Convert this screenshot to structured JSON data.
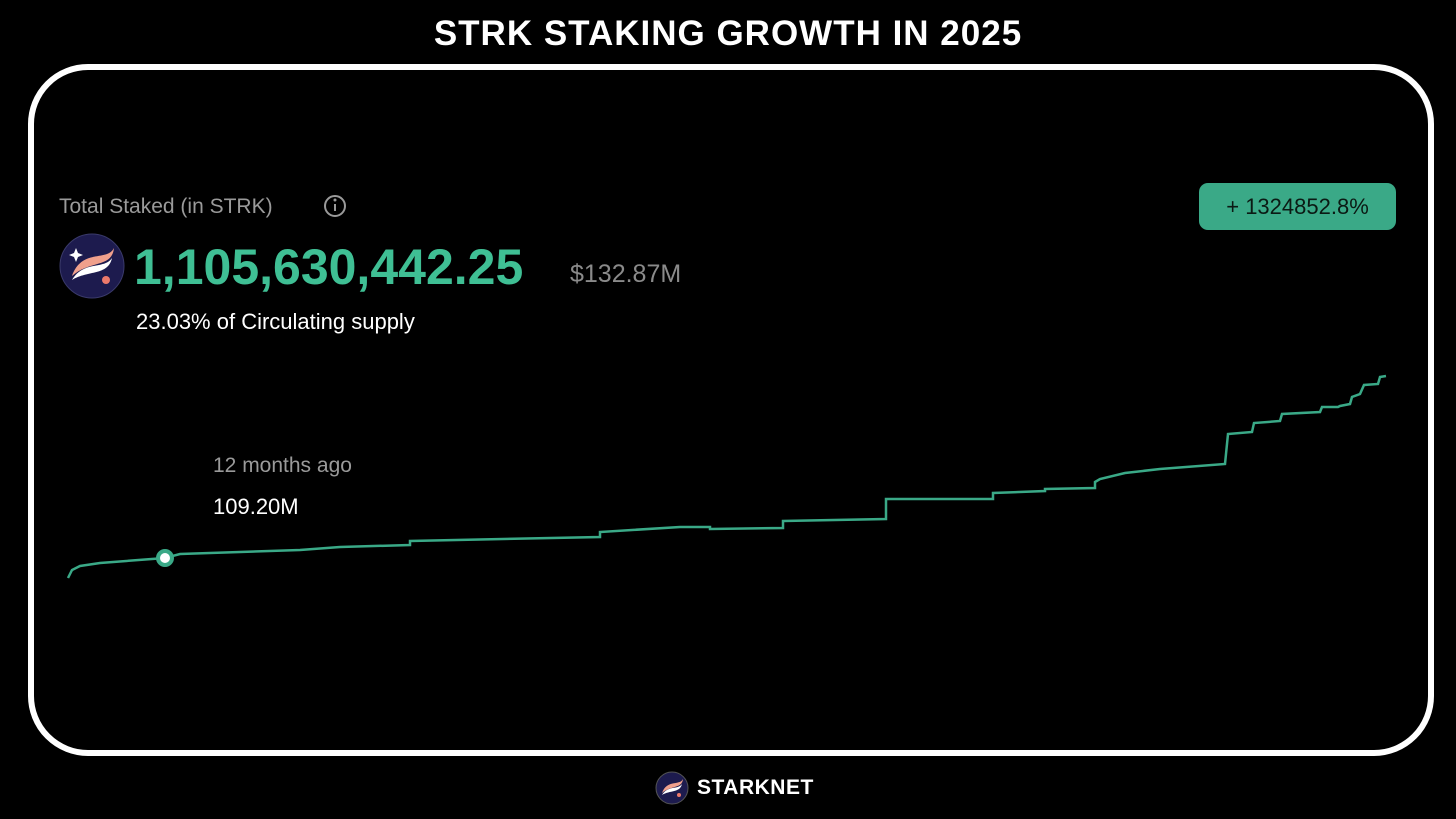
{
  "header": {
    "title": "STRK STAKING GROWTH IN 2025"
  },
  "card": {
    "label": "Total Staked (in STRK)",
    "amount": "1,105,630,442.25",
    "usd": "$132.87M",
    "supply": "23.03% of Circulating supply",
    "change": "+ 1324852.8%",
    "tooltip": {
      "label": "12 months ago",
      "value": "109.20M"
    }
  },
  "footer": {
    "brand": "STARKNET"
  }
}
